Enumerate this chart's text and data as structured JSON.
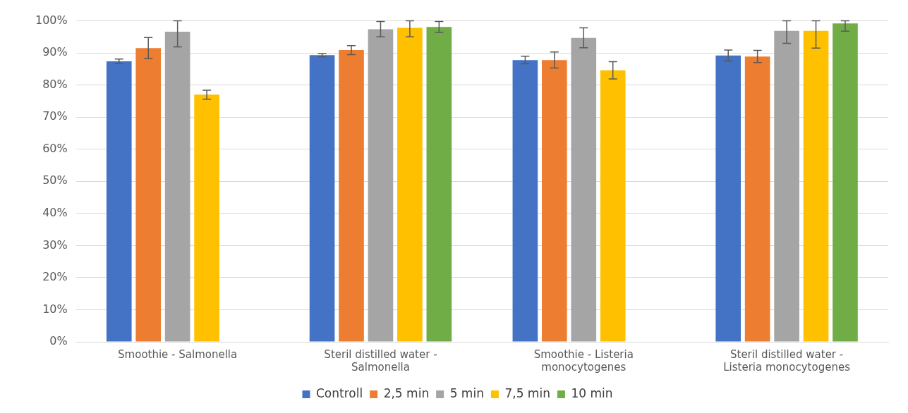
{
  "chart_data": {
    "type": "bar",
    "categories": [
      "Smoothie - Salmonella",
      "Steril distilled water - Salmonella",
      "Smoothie - Listeria monocytogenes",
      "Steril distilled water - Listeria monocytogenes"
    ],
    "series": [
      {
        "name": "Controll",
        "color": "#4472c4",
        "values": [
          87.4,
          89.3,
          87.8,
          89.2
        ],
        "errors": [
          0.7,
          0.5,
          1.2,
          1.7
        ]
      },
      {
        "name": "2,5 min",
        "color": "#ed7d31",
        "values": [
          91.5,
          90.9,
          87.8,
          88.9
        ],
        "errors": [
          3.3,
          1.4,
          2.5,
          1.9
        ]
      },
      {
        "name": "5 min",
        "color": "#a5a5a5",
        "values": [
          96.6,
          97.4,
          94.7,
          96.9
        ],
        "errors": [
          [
            91.9,
            100
          ],
          [
            95.0,
            99.8
          ],
          3.1,
          [
            93.0,
            100
          ]
        ]
      },
      {
        "name": "7,5 min",
        "color": "#ffc000",
        "values": [
          77.0,
          97.8,
          84.6,
          96.9
        ],
        "errors": [
          1.4,
          [
            95.0,
            100
          ],
          2.7,
          [
            91.5,
            100
          ]
        ]
      },
      {
        "name": "10 min",
        "color": "#70ad47",
        "values": [
          null,
          98.1,
          null,
          99.2
        ],
        "errors": [
          null,
          1.7,
          null,
          [
            96.8,
            100
          ]
        ]
      }
    ],
    "ylim": [
      0,
      100
    ],
    "yticks": [
      {
        "value": 0,
        "label": "0%"
      },
      {
        "value": 10,
        "label": "10%"
      },
      {
        "value": 20,
        "label": "20%"
      },
      {
        "value": 30,
        "label": "30%"
      },
      {
        "value": 40,
        "label": "40%"
      },
      {
        "value": 50,
        "label": "50%"
      },
      {
        "value": 60,
        "label": "60%"
      },
      {
        "value": 70,
        "label": "70%"
      },
      {
        "value": 80,
        "label": "80%"
      },
      {
        "value": 90,
        "label": "90%"
      },
      {
        "value": 100,
        "label": "100%"
      }
    ],
    "grid": "y",
    "legend": "bottom"
  }
}
